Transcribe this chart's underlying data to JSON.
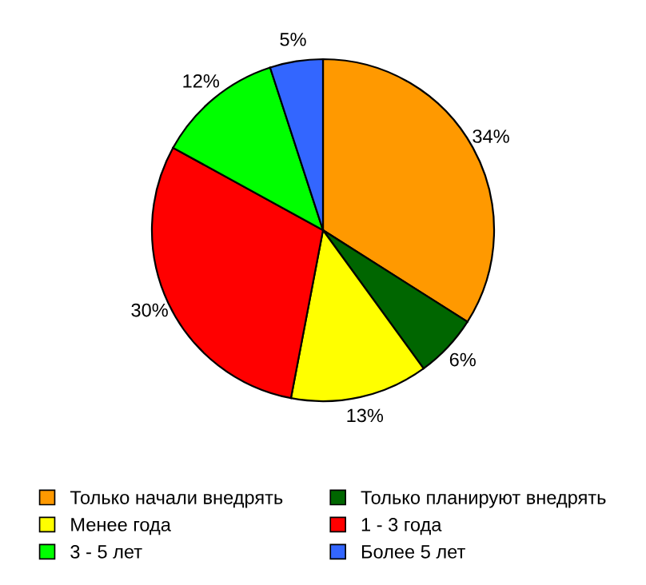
{
  "chart_data": {
    "type": "pie",
    "categories": [
      "Только начали внедрять",
      "Только планируют внедрять",
      "Менее года",
      "1 - 3 года",
      "3 - 5 лет",
      "Более 5 лет"
    ],
    "values": [
      34,
      6,
      13,
      30,
      12,
      5
    ],
    "colors": [
      "#ff9900",
      "#006600",
      "#ffff00",
      "#ff0000",
      "#00ff00",
      "#3366ff"
    ],
    "value_labels": [
      "34%",
      "6%",
      "13%",
      "30%",
      "12%",
      "5%"
    ],
    "legend": "bottom"
  }
}
